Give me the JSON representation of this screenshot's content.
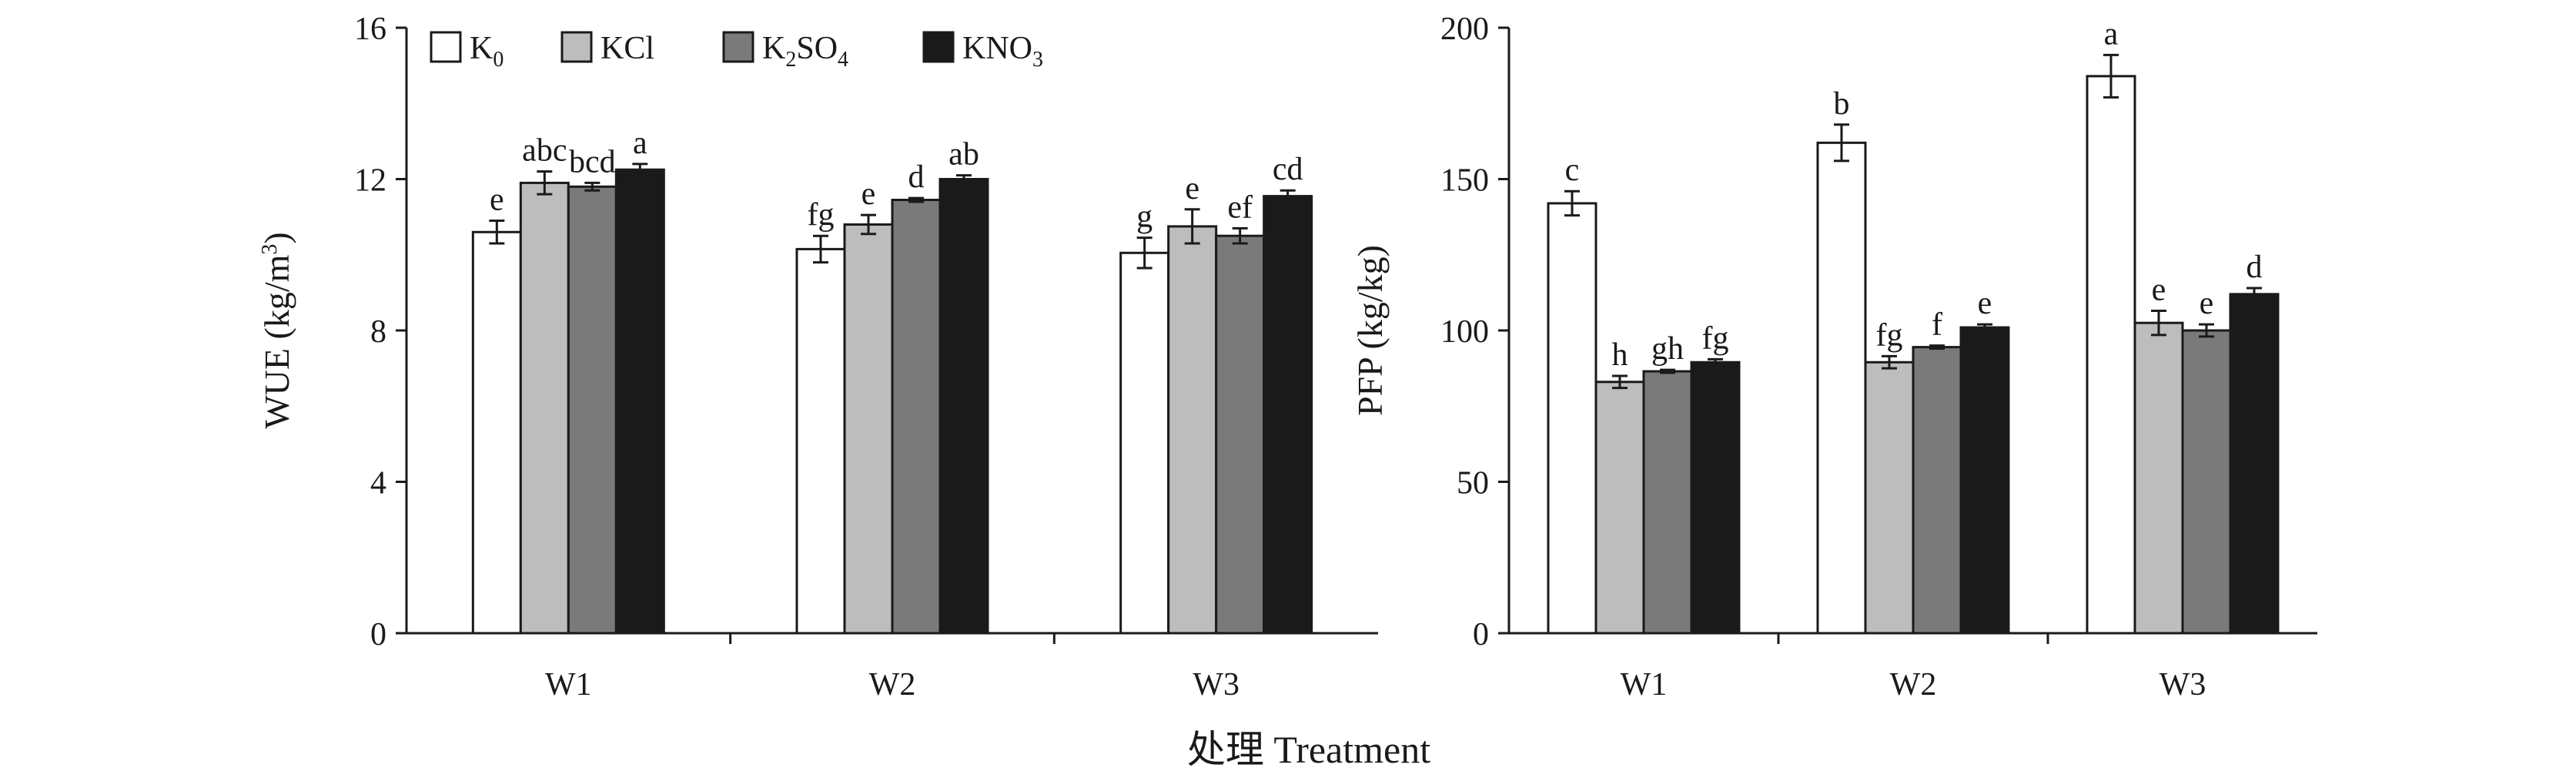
{
  "legend": {
    "items": [
      {
        "key": "K0",
        "main": "K",
        "sub": "0",
        "tail": "",
        "color": "#ffffff"
      },
      {
        "key": "KCl",
        "main": "KCl",
        "sub": "",
        "tail": "",
        "color": "#bdbdbd"
      },
      {
        "key": "K2SO4",
        "main": "K",
        "sub": "2",
        "tail": "SO",
        "sub2": "4",
        "color": "#7a7a7a"
      },
      {
        "key": "KNO3",
        "main": "KNO",
        "sub": "3",
        "tail": "",
        "color": "#1a1a1a"
      }
    ]
  },
  "x_title": "处理 Treatment",
  "chart_data": [
    {
      "type": "bar",
      "ylabel_main": "WUE (kg/m",
      "ylabel_sup": "3",
      "ylabel_end": ")",
      "categories": [
        "W1",
        "W2",
        "W3"
      ],
      "ylim": [
        0,
        16
      ],
      "yticks": [
        0,
        4,
        8,
        12,
        16
      ],
      "series": [
        {
          "name": "K0",
          "values": [
            10.6,
            10.15,
            10.05
          ],
          "errors": [
            0.3,
            0.35,
            0.4
          ],
          "letters": [
            "e",
            "fg",
            "g"
          ]
        },
        {
          "name": "KCl",
          "values": [
            11.9,
            10.8,
            10.75
          ],
          "errors": [
            0.3,
            0.25,
            0.45
          ],
          "letters": [
            "abc",
            "e",
            "e"
          ]
        },
        {
          "name": "K2SO4",
          "values": [
            11.8,
            11.45,
            10.5
          ],
          "errors": [
            0.1,
            0.05,
            0.2
          ],
          "letters": [
            "bcd",
            "d",
            "ef"
          ]
        },
        {
          "name": "KNO3",
          "values": [
            12.25,
            12.0,
            11.55
          ],
          "errors": [
            0.15,
            0.1,
            0.15
          ],
          "letters": [
            "a",
            "ab",
            "cd"
          ]
        }
      ]
    },
    {
      "type": "bar",
      "ylabel_main": "PFP (kg/kg)",
      "ylabel_sup": "",
      "ylabel_end": "",
      "categories": [
        "W1",
        "W2",
        "W3"
      ],
      "ylim": [
        0,
        200
      ],
      "yticks": [
        0,
        50,
        100,
        150,
        200
      ],
      "series": [
        {
          "name": "K0",
          "values": [
            142,
            162,
            184
          ],
          "errors": [
            4,
            6,
            7
          ],
          "letters": [
            "c",
            "b",
            "a"
          ]
        },
        {
          "name": "KCl",
          "values": [
            83,
            89.5,
            102.5
          ],
          "errors": [
            2,
            2,
            4
          ],
          "letters": [
            "h",
            "fg",
            "e"
          ]
        },
        {
          "name": "K2SO4",
          "values": [
            86.5,
            94.5,
            100
          ],
          "errors": [
            0.5,
            0.5,
            2
          ],
          "letters": [
            "gh",
            "f",
            "e"
          ]
        },
        {
          "name": "KNO3",
          "values": [
            89.5,
            101,
            112
          ],
          "errors": [
            1,
            1,
            2
          ],
          "letters": [
            "fg",
            "e",
            "d"
          ]
        }
      ]
    }
  ]
}
